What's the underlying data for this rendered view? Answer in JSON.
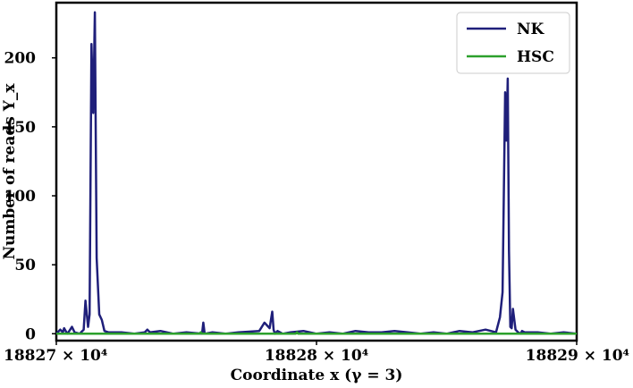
{
  "chart_data": {
    "type": "line",
    "title": "",
    "xlabel": "Coordinate x (γ = 3)",
    "ylabel": "Number of reads Y_x",
    "xlim": [
      188270000,
      188290000
    ],
    "ylim": [
      -5,
      240
    ],
    "x_ticks": [
      {
        "value": 188270000,
        "label": "18827 × 10⁴"
      },
      {
        "value": 188280000,
        "label": "18828 × 10⁴"
      },
      {
        "value": 188290000,
        "label": "18829 × 10⁴"
      }
    ],
    "y_ticks": [
      0,
      50,
      100,
      150,
      200
    ],
    "grid": false,
    "legend_position": "top-right",
    "series": [
      {
        "name": "NK",
        "color": "#1f1f7a",
        "x": [
          188270000,
          188270150,
          188270250,
          188270300,
          188270420,
          188270500,
          188270600,
          188270700,
          188270900,
          188271050,
          188271120,
          188271220,
          188271280,
          188271350,
          188271420,
          188271480,
          188271550,
          188271650,
          188271750,
          188271850,
          188272000,
          188272500,
          188273000,
          188273400,
          188273500,
          188273600,
          188274000,
          188274500,
          188275000,
          188275600,
          188275650,
          188275700,
          188276000,
          188276500,
          188277000,
          188277800,
          188278000,
          188278200,
          188278300,
          188278350,
          188278400,
          188278500,
          188278700,
          188279000,
          188279500,
          188280000,
          188280500,
          188281000,
          188281500,
          188282000,
          188282500,
          188283000,
          188283500,
          188284000,
          188284500,
          188285000,
          188285500,
          188286000,
          188286500,
          188286900,
          188287050,
          188287150,
          188287250,
          188287300,
          188287350,
          188287400,
          188287450,
          188287500,
          188287550,
          188287650,
          188287750,
          188287850,
          188287900,
          188288000,
          188288500,
          188289000,
          188289500,
          188290000
        ],
        "values": [
          0,
          3,
          1,
          4,
          0,
          2,
          5,
          1,
          0,
          3,
          24,
          5,
          14,
          210,
          160,
          233,
          55,
          14,
          10,
          2,
          1,
          1,
          0,
          1,
          3,
          1,
          2,
          0,
          1,
          0,
          8,
          0,
          1,
          0,
          1,
          2,
          8,
          4,
          16,
          3,
          0,
          2,
          0,
          1,
          2,
          0,
          1,
          0,
          2,
          1,
          1,
          2,
          1,
          0,
          1,
          0,
          2,
          1,
          3,
          1,
          12,
          30,
          175,
          140,
          185,
          60,
          5,
          4,
          18,
          3,
          1,
          0,
          2,
          1,
          1,
          0,
          1,
          0
        ]
      },
      {
        "name": "HSC",
        "color": "#2ca02c",
        "x": [
          188270000,
          188272000,
          188274000,
          188275500,
          188275550,
          188275600,
          188277000,
          188279200,
          188279250,
          188279300,
          188281000,
          188283000,
          188285000,
          188287000,
          188288000,
          188290000
        ],
        "values": [
          0,
          0,
          0,
          0,
          1,
          0,
          0,
          0,
          1,
          0,
          0,
          0,
          0,
          0,
          0,
          0
        ]
      }
    ]
  }
}
